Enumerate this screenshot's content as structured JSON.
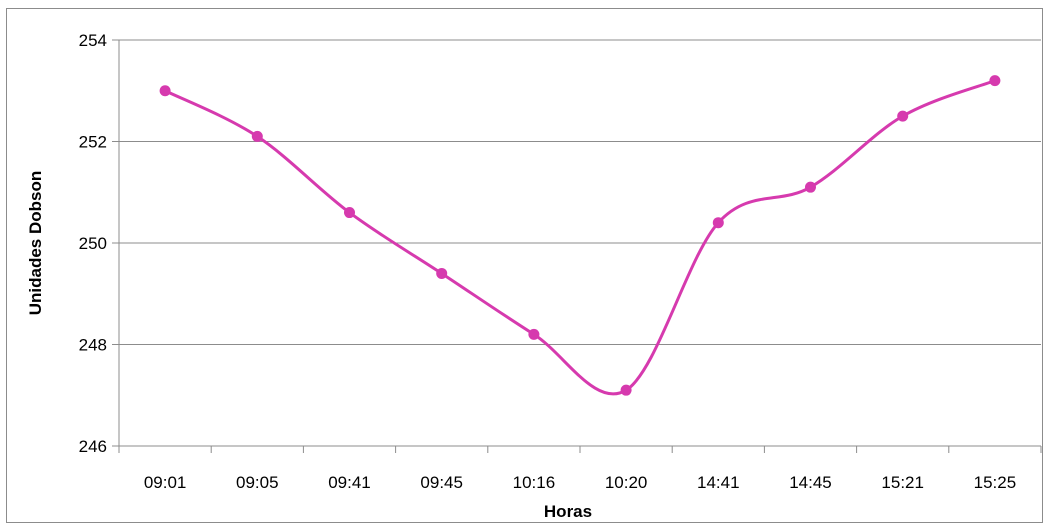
{
  "chart_data": {
    "type": "line",
    "title": "",
    "xlabel": "Horas",
    "ylabel": "Unidades Dobson",
    "categories": [
      "09:01",
      "09:05",
      "09:41",
      "09:45",
      "10:16",
      "10:20",
      "14:41",
      "14:45",
      "15:21",
      "15:25"
    ],
    "series": [
      {
        "name": "",
        "values": [
          253.0,
          252.1,
          250.6,
          249.4,
          248.2,
          247.1,
          250.4,
          251.1,
          252.5,
          253.2
        ]
      }
    ],
    "ylim": [
      246,
      254
    ],
    "yticks": [
      246,
      248,
      250,
      252,
      254
    ],
    "grid": true,
    "legend": "none",
    "smooth": true,
    "colors": {
      "line": "#d63aae",
      "marker": "#d63aae",
      "grid": "#8c8c8c",
      "axis": "#8c8c8c"
    }
  }
}
